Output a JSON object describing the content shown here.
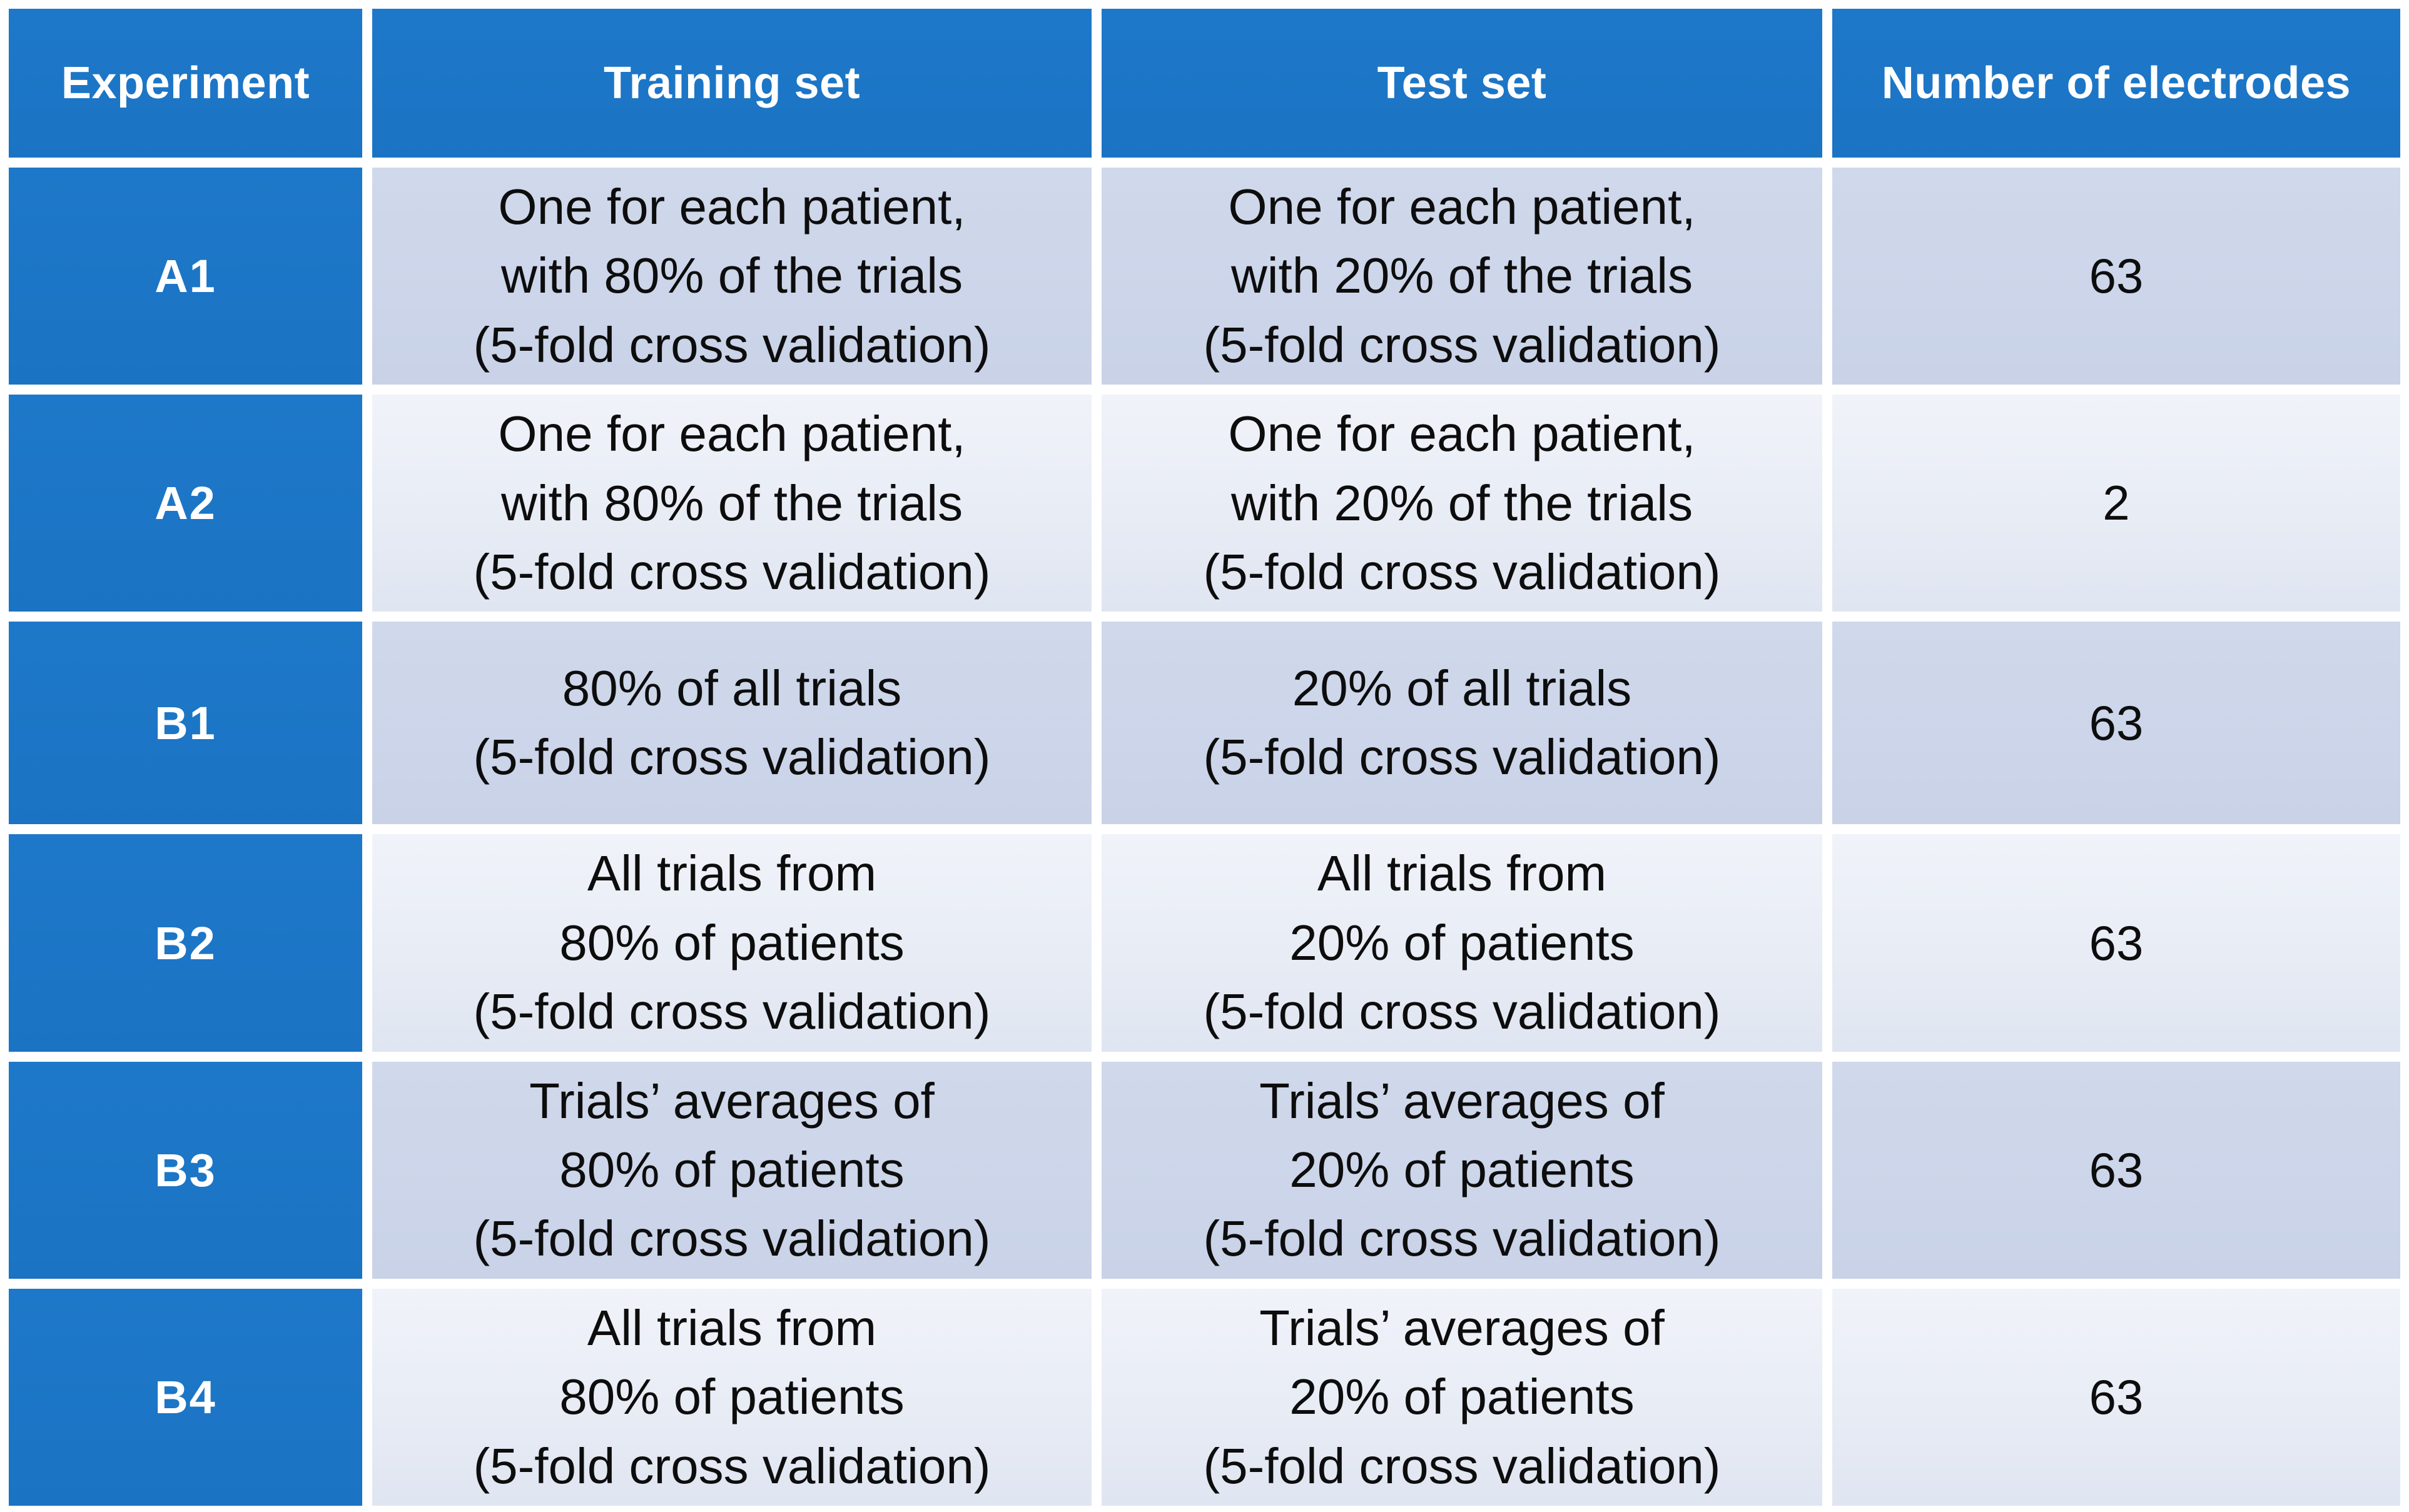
{
  "table": {
    "header": {
      "experiment": "Experiment",
      "training": "Training set",
      "test": "Test set",
      "electrodes": "Number of electrodes"
    },
    "rows": [
      {
        "experiment": "A1",
        "training": "One for each patient,\nwith 80% of the trials\n(5-fold cross validation)",
        "test": "One for each patient,\nwith 20% of the trials\n(5-fold cross validation)",
        "electrodes": "63"
      },
      {
        "experiment": "A2",
        "training": "One for each patient,\nwith 80% of the trials\n(5-fold cross validation)",
        "test": "One for each patient,\nwith 20% of the trials\n(5-fold cross validation)",
        "electrodes": "2"
      },
      {
        "experiment": "B1",
        "training": "80% of all trials\n(5-fold cross validation)",
        "test": "20% of all trials\n(5-fold cross validation)",
        "electrodes": "63"
      },
      {
        "experiment": "B2",
        "training": "All trials from\n80% of patients\n(5-fold cross validation)",
        "test": "All trials from\n20% of patients\n(5-fold cross validation)",
        "electrodes": "63"
      },
      {
        "experiment": "B3",
        "training": "Trials’ averages of\n80% of patients\n(5-fold cross validation)",
        "test": "Trials’ averages of\n20% of patients\n(5-fold cross validation)",
        "electrodes": "63"
      },
      {
        "experiment": "B4",
        "training": "All trials from\n80% of patients\n(5-fold cross validation)",
        "test": "Trials’ averages of\n20% of patients\n(5-fold cross validation)",
        "electrodes": "63"
      }
    ],
    "colors": {
      "header_blue": "#1C75C5",
      "row_dark": "#CCD5E9",
      "row_light": "#E8ECF5",
      "gap_white": "#FFFFFF",
      "text_dark": "#0D0D0D",
      "text_light": "#FFFFFF"
    }
  }
}
